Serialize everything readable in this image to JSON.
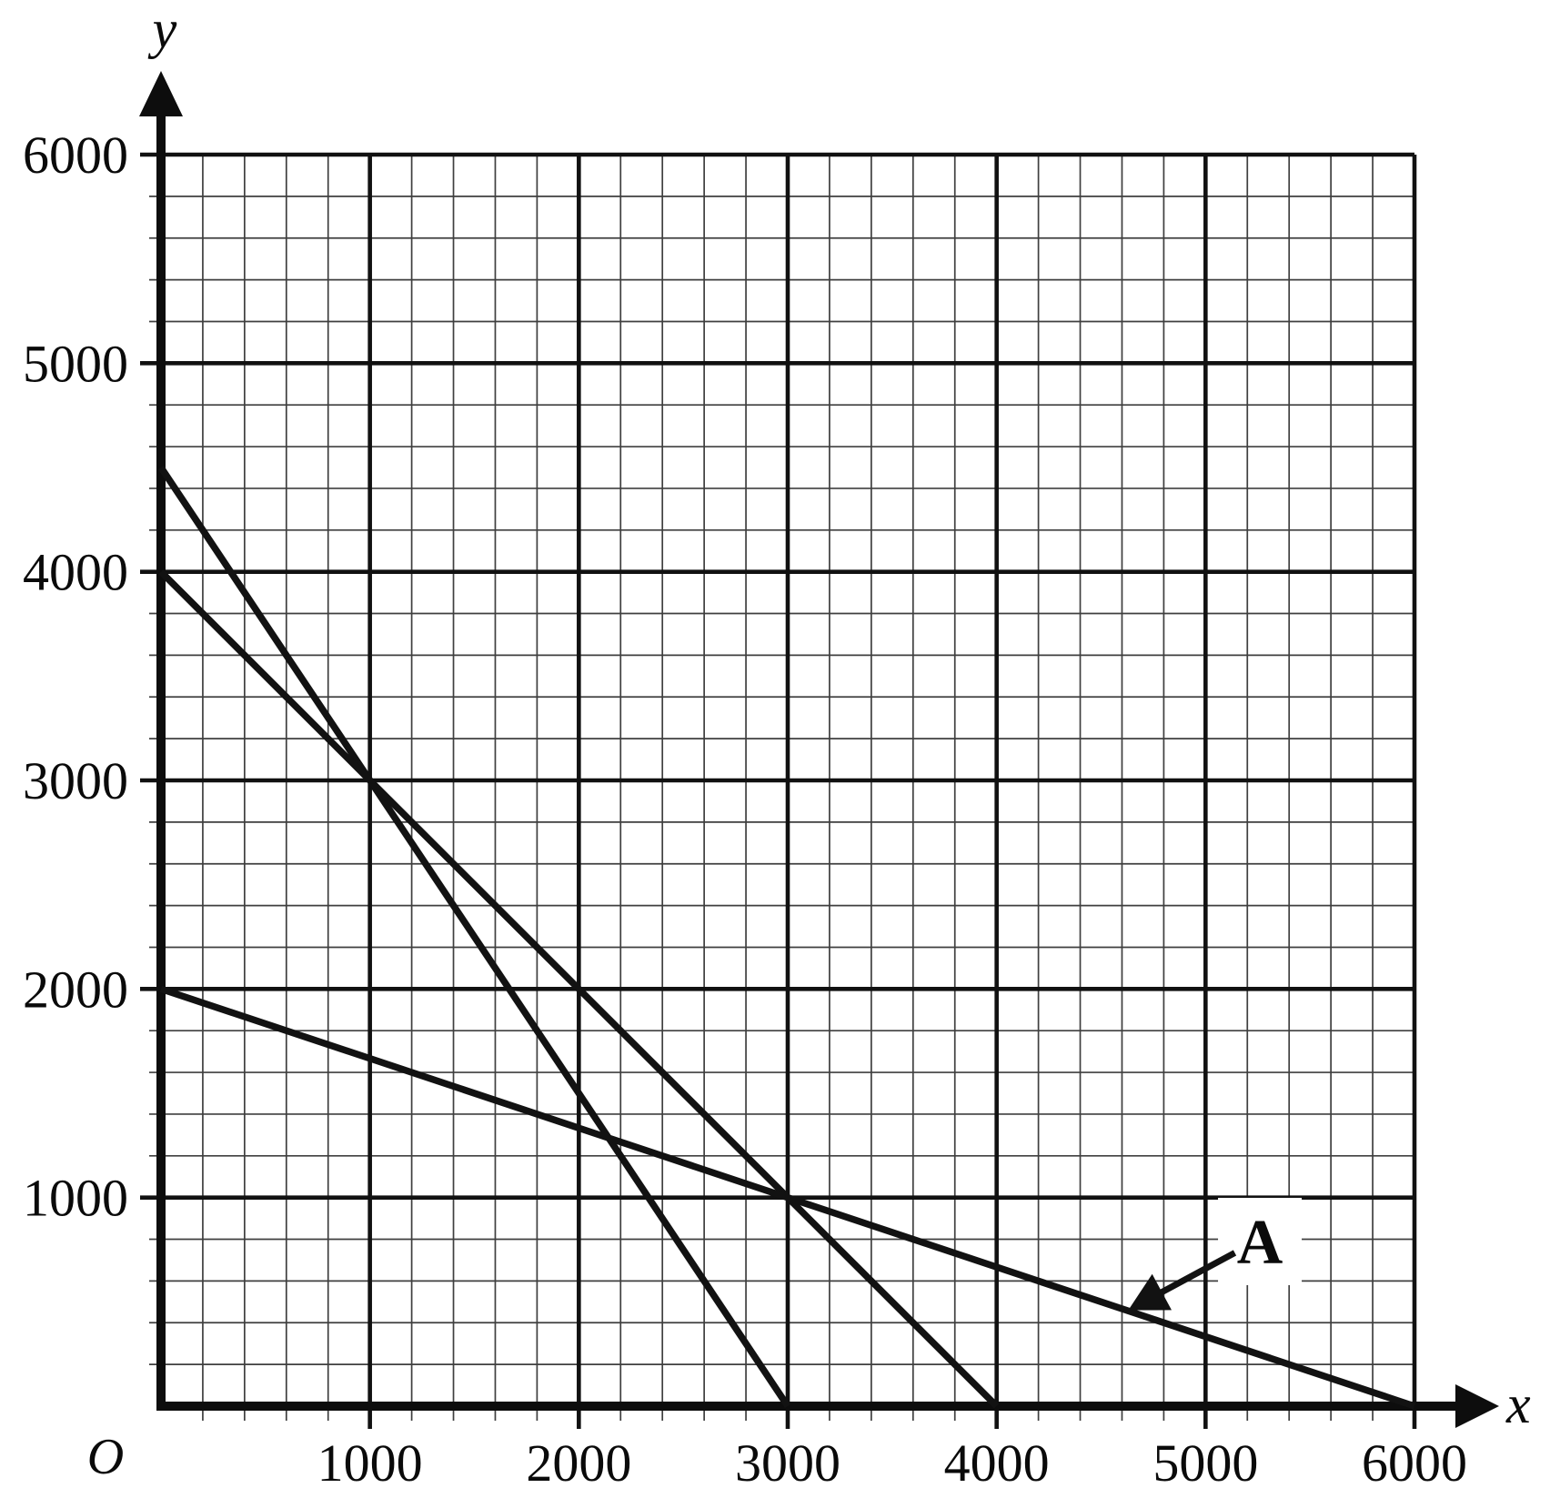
{
  "page": {
    "background": "#ffffff",
    "description": "Graph of three straight lines on a 6000 by 6000 grid, one line labelled A"
  },
  "chart_data": {
    "type": "line",
    "title": "",
    "xlabel": "x",
    "ylabel": "y",
    "origin_label": "O",
    "xlim": [
      0,
      6000
    ],
    "ylim": [
      0,
      6000
    ],
    "x_ticks": [
      1000,
      2000,
      3000,
      4000,
      5000,
      6000
    ],
    "y_ticks": [
      1000,
      2000,
      3000,
      4000,
      5000,
      6000
    ],
    "major_step": 1000,
    "minor_step": 200,
    "grid": "major and minor gridlines on",
    "legend_position": "none",
    "series": [
      {
        "name": "steep-line",
        "points": [
          [
            0,
            4500
          ],
          [
            3000,
            0
          ]
        ],
        "y_intercept": 4500,
        "x_intercept": 3000,
        "slope": -1.5
      },
      {
        "name": "middle-line",
        "points": [
          [
            0,
            4000
          ],
          [
            4000,
            0
          ]
        ],
        "y_intercept": 4000,
        "x_intercept": 4000,
        "slope": -1
      },
      {
        "name": "line-A",
        "label": "A",
        "points": [
          [
            0,
            2000
          ],
          [
            6000,
            0
          ]
        ],
        "y_intercept": 2000,
        "x_intercept": 6000,
        "slope": -0.3333
      }
    ],
    "intersections": [
      [
        1000,
        3000
      ],
      [
        3000,
        1000
      ]
    ],
    "annotation": {
      "label": "A",
      "label_pos": [
        5260,
        785
      ],
      "arrow_start": [
        5140,
        735
      ],
      "arrow_tip": [
        4630,
        460
      ]
    },
    "colors": {
      "axis": "#0d0d0d",
      "major_grid": "#111111",
      "minor_grid": "#3f3f3f",
      "line": "#121212",
      "text": "#0a0a0a",
      "annotation_bg": "#ffffff",
      "background": "#ffffff"
    }
  }
}
